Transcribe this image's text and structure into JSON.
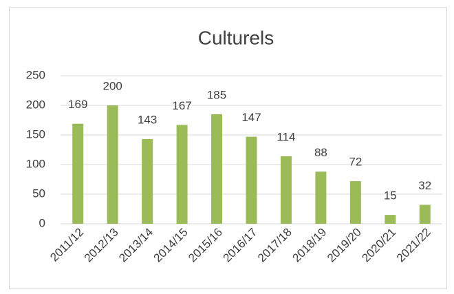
{
  "chart_data": {
    "type": "bar",
    "title": "Culturels",
    "categories": [
      "2011/12",
      "2012/13",
      "2013/14",
      "2014/15",
      "2015/16",
      "2016/17",
      "2017/18",
      "2018/19",
      "2019/20",
      "2020/21",
      "2021/22"
    ],
    "values": [
      169,
      200,
      143,
      167,
      185,
      147,
      114,
      88,
      72,
      15,
      32
    ],
    "color": "#9bbb59",
    "ylim": [
      0,
      250
    ],
    "yticks": [
      0,
      50,
      100,
      150,
      200,
      250
    ],
    "grid": true
  }
}
